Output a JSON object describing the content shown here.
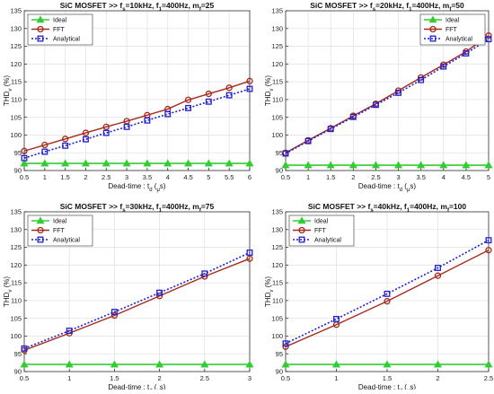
{
  "colors": {
    "ideal": "#33cc33",
    "fft": "#a52a1e",
    "analytical": "#1f1fd0",
    "grid": "#e3e3e3",
    "axis": "#333333"
  },
  "chart_data": [
    {
      "type": "line",
      "title_parts": [
        "SiC MOSFET >> f",
        "s",
        "=10kHz, f",
        "1",
        "=400Hz, m",
        "f",
        "=25"
      ],
      "xlabel_parts": [
        "Dead-time : t",
        "d",
        " (",
        "μ",
        "s)"
      ],
      "ylabel_parts": [
        "THD",
        "v",
        " (%)"
      ],
      "xlim": [
        0.5,
        6
      ],
      "ylim": [
        90,
        135
      ],
      "xticks": [
        0.5,
        1,
        1.5,
        2,
        2.5,
        3,
        3.5,
        4,
        4.5,
        5,
        5.5,
        6
      ],
      "yticks": [
        90,
        95,
        100,
        105,
        110,
        115,
        120,
        125,
        130,
        135
      ],
      "grid": true,
      "legend_position": "top-left",
      "series": [
        {
          "name": "Ideal",
          "x": [
            0.5,
            1,
            1.5,
            2,
            2.5,
            3,
            3.5,
            4,
            4.5,
            5,
            5.5,
            6
          ],
          "y": [
            92,
            92,
            92,
            92,
            92,
            92,
            92,
            92,
            92,
            92,
            92,
            92
          ]
        },
        {
          "name": "FFT",
          "x": [
            0.5,
            1,
            1.5,
            2,
            2.5,
            3,
            3.5,
            4,
            4.5,
            5,
            5.5,
            6
          ],
          "y": [
            95.5,
            97.2,
            98.9,
            100.6,
            102.3,
            103.9,
            105.6,
            107.3,
            109.9,
            111.6,
            113.3,
            115.2
          ]
        },
        {
          "name": "Analytical",
          "x": [
            0.5,
            1,
            1.5,
            2,
            2.5,
            3,
            3.5,
            4,
            4.5,
            5,
            5.5,
            6
          ],
          "y": [
            93.5,
            95.3,
            97.0,
            98.8,
            100.6,
            102.3,
            104.1,
            105.9,
            107.6,
            109.4,
            111.2,
            113.0
          ]
        }
      ]
    },
    {
      "type": "line",
      "title_parts": [
        "SiC MOSFET >> f",
        "s",
        "=20kHz, f",
        "1",
        "=400Hz, m",
        "f",
        "=50"
      ],
      "xlabel_parts": [
        "Dead-time : t",
        "d",
        " (",
        "μ",
        "s)"
      ],
      "ylabel_parts": [
        "THD",
        "v",
        " (%)"
      ],
      "xlim": [
        0.5,
        5
      ],
      "ylim": [
        90,
        135
      ],
      "xticks": [
        0.5,
        1,
        1.5,
        2,
        2.5,
        3,
        3.5,
        4,
        4.5,
        5
      ],
      "yticks": [
        90,
        95,
        100,
        105,
        110,
        115,
        120,
        125,
        130,
        135
      ],
      "grid": true,
      "legend_position": "top-right",
      "series": [
        {
          "name": "Ideal",
          "x": [
            0.5,
            1,
            1.5,
            2,
            2.5,
            3,
            3.5,
            4,
            4.5,
            5
          ],
          "y": [
            91.5,
            91.5,
            91.5,
            91.5,
            91.5,
            91.5,
            91.5,
            91.5,
            91.5,
            91.5
          ]
        },
        {
          "name": "FFT",
          "x": [
            0.5,
            1,
            1.5,
            2,
            2.5,
            3,
            3.5,
            4,
            4.5,
            5
          ],
          "y": [
            95.0,
            98.5,
            101.9,
            105.4,
            108.8,
            112.5,
            116.2,
            119.8,
            123.5,
            128.0
          ]
        },
        {
          "name": "Analytical",
          "x": [
            0.5,
            1,
            1.5,
            2,
            2.5,
            3,
            3.5,
            4,
            4.5,
            5
          ],
          "y": [
            94.8,
            98.3,
            101.7,
            105.1,
            108.5,
            111.9,
            115.5,
            119.3,
            123.0,
            127.0
          ]
        }
      ]
    },
    {
      "type": "line",
      "title_parts": [
        "SiC MOSFET >> f",
        "s",
        "=30kHz, f",
        "1",
        "=400Hz, m",
        "f",
        "=75"
      ],
      "xlabel_parts": [
        "Dead-time : t",
        "d",
        " (",
        "μ",
        "s)"
      ],
      "ylabel_parts": [
        "THD",
        "v",
        " (%)"
      ],
      "xlim": [
        0.5,
        3
      ],
      "ylim": [
        90,
        135
      ],
      "xticks": [
        0.5,
        1,
        1.5,
        2,
        2.5,
        3
      ],
      "yticks": [
        90,
        95,
        100,
        105,
        110,
        115,
        120,
        125,
        130,
        135
      ],
      "grid": true,
      "legend_position": "top-left",
      "series": [
        {
          "name": "Ideal",
          "x": [
            0.5,
            1,
            1.5,
            2,
            2.5,
            3
          ],
          "y": [
            92,
            92,
            92,
            92,
            92,
            92
          ]
        },
        {
          "name": "FFT",
          "x": [
            0.5,
            1,
            1.5,
            2,
            2.5,
            3
          ],
          "y": [
            96.0,
            100.8,
            105.8,
            111.3,
            116.8,
            121.8
          ]
        },
        {
          "name": "Analytical",
          "x": [
            0.5,
            1,
            1.5,
            2,
            2.5,
            3
          ],
          "y": [
            96.5,
            101.5,
            106.8,
            112.2,
            117.6,
            123.5
          ]
        }
      ]
    },
    {
      "type": "line",
      "title_parts": [
        "SiC MOSFET >> f",
        "s",
        "=40kHz, f",
        "1",
        "=400Hz, m",
        "f",
        "=100"
      ],
      "xlabel_parts": [
        "Dead-time : t",
        "d",
        " (",
        "μ",
        "s)"
      ],
      "ylabel_parts": [
        "THD",
        "v",
        " (%)"
      ],
      "xlim": [
        0.5,
        2.5
      ],
      "ylim": [
        90,
        135
      ],
      "xticks": [
        0.5,
        1,
        1.5,
        2,
        2.5
      ],
      "yticks": [
        90,
        95,
        100,
        105,
        110,
        115,
        120,
        125,
        130,
        135
      ],
      "grid": true,
      "legend_position": "top-left",
      "series": [
        {
          "name": "Ideal",
          "x": [
            0.5,
            1,
            1.5,
            2,
            2.5
          ],
          "y": [
            92,
            92,
            92,
            92,
            92
          ]
        },
        {
          "name": "FFT",
          "x": [
            0.5,
            1,
            1.5,
            2,
            2.5
          ],
          "y": [
            97.0,
            103.2,
            109.8,
            117.0,
            124.2
          ]
        },
        {
          "name": "Analytical",
          "x": [
            0.5,
            1,
            1.5,
            2,
            2.5
          ],
          "y": [
            97.9,
            104.8,
            111.9,
            119.2,
            127.0
          ]
        }
      ]
    }
  ]
}
